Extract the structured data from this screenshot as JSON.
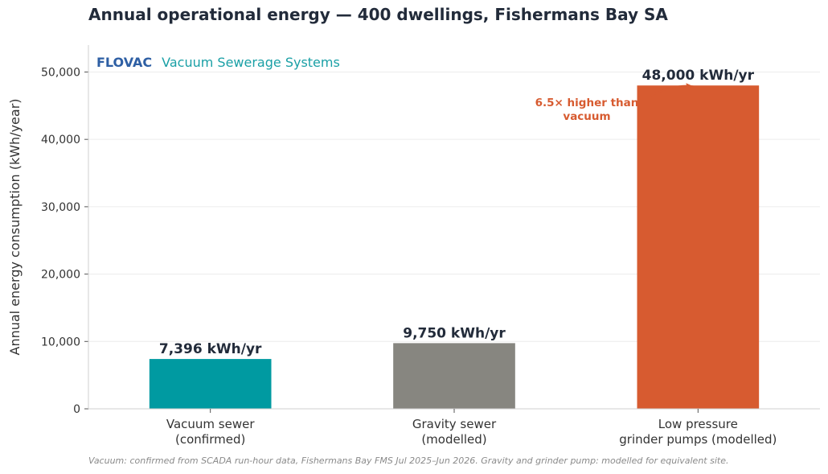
{
  "chart_data": {
    "type": "bar",
    "title": "Annual operational energy — 400 dwellings, Fishermans Bay SA",
    "brand": "FLOVAC",
    "brand_tagline": "Vacuum Sewerage Systems",
    "ylabel": "Annual energy consumption (kWh/year)",
    "xlabel": "",
    "ylim": [
      0,
      54000
    ],
    "yticks": [
      0,
      10000,
      20000,
      30000,
      40000,
      50000
    ],
    "ytick_labels": [
      "0",
      "10,000",
      "20,000",
      "30,000",
      "40,000",
      "50,000"
    ],
    "grid": true,
    "categories": [
      [
        "Vacuum sewer",
        "(confirmed)"
      ],
      [
        "Gravity sewer",
        "(modelled)"
      ],
      [
        "Low pressure",
        "grinder pumps (modelled)"
      ]
    ],
    "values": [
      7396,
      9750,
      48000
    ],
    "data_labels": [
      "7,396 kWh/yr",
      "9,750 kWh/yr",
      "48,000 kWh/yr"
    ],
    "colors": [
      "#009aa1",
      "#878680",
      "#d75b30"
    ],
    "annotation": {
      "lines": [
        "6.5× higher than",
        "vacuum"
      ],
      "target_index": 2,
      "color": "#d75b30"
    },
    "footnote": "Vacuum: confirmed from SCADA run-hour data, Fishermans Bay FMS Jul 2025–Jun 2026. Gravity and grinder pump: modelled for equivalent site.",
    "brand_color": "#2e5fa4",
    "tagline_color": "#1aa0a6"
  }
}
